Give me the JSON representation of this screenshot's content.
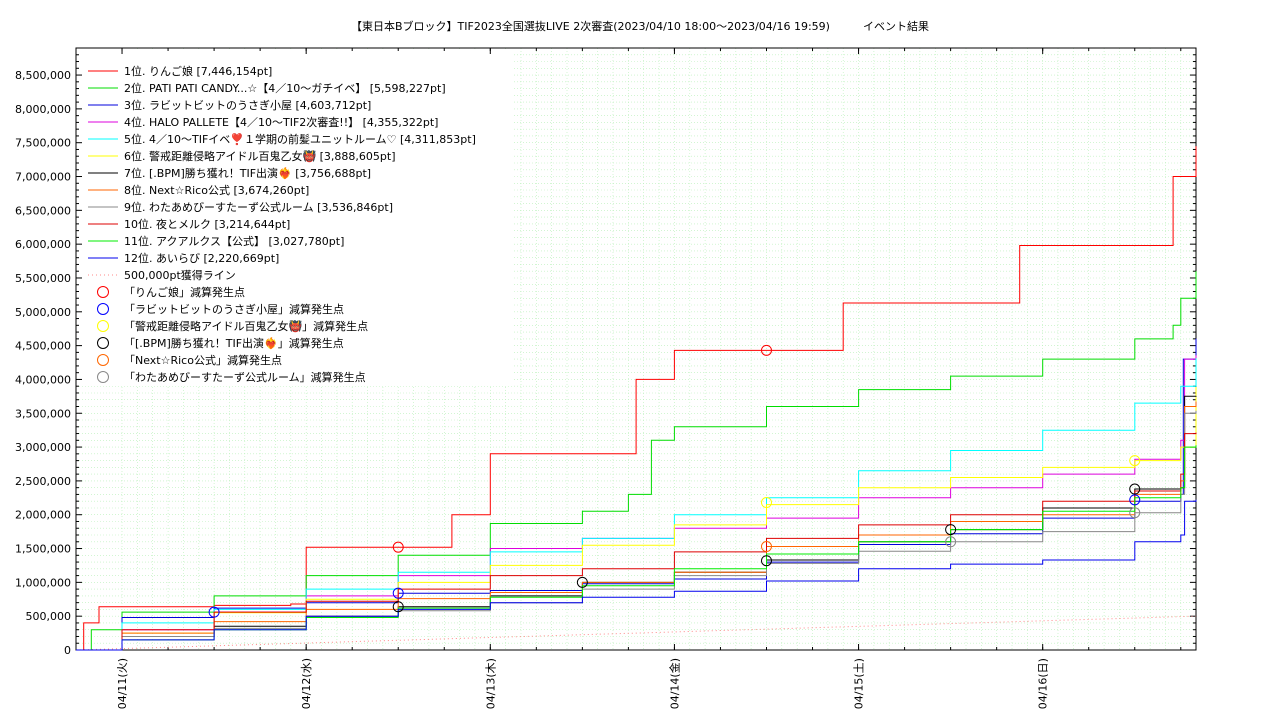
{
  "chart_data": {
    "type": "line",
    "title": "【東日本Bブロック】TIF2023全国選抜LIVE 2次審査(2023/04/10 18:00～2023/04/16 19:59)　　　イベント結果",
    "xlabel": "",
    "ylabel": "",
    "x_range": [
      "2023-04-10 18:00",
      "2023-04-16 19:59"
    ],
    "x_tick_labels": [
      "04/11(火)",
      "04/12(水)",
      "04/13(木)",
      "04/14(金)",
      "04/15(土)",
      "04/16(日)"
    ],
    "x_tick_times": [
      "2023-04-11 00:00",
      "2023-04-12 00:00",
      "2023-04-13 00:00",
      "2023-04-14 00:00",
      "2023-04-15 00:00",
      "2023-04-16 00:00"
    ],
    "ylim": [
      0,
      8900000
    ],
    "y_ticks": [
      0,
      500000,
      1000000,
      1500000,
      2000000,
      2500000,
      3000000,
      3500000,
      4000000,
      4500000,
      5000000,
      5500000,
      6000000,
      6500000,
      7000000,
      7500000,
      8000000,
      8500000
    ],
    "y_tick_labels": [
      "0",
      "500,000",
      "1,000,000",
      "1,500,000",
      "2,000,000",
      "2,500,000",
      "3,000,000",
      "3,500,000",
      "4,000,000",
      "4,500,000",
      "5,000,000",
      "5,500,000",
      "6,000,000",
      "6,500,000",
      "7,000,000",
      "7,500,000",
      "8,000,000",
      "8,500,000"
    ],
    "grid": true,
    "legend_position": "top-left",
    "series": [
      {
        "name": "1位. りんご娘 [7,446,154pt]",
        "color": "#ff0000",
        "x": [
          "2023-04-10 18:00",
          "2023-04-10 19:00",
          "2023-04-10 21:00",
          "2023-04-11 05:00",
          "2023-04-11 10:00",
          "2023-04-11 12:00",
          "2023-04-11 22:00",
          "2023-04-12 00:00",
          "2023-04-12 12:00",
          "2023-04-12 17:00",
          "2023-04-12 19:00",
          "2023-04-13 00:00",
          "2023-04-13 12:00",
          "2023-04-13 17:00",
          "2023-04-13 19:00",
          "2023-04-14 00:00",
          "2023-04-14 12:00",
          "2023-04-14 20:00",
          "2023-04-14 22:00",
          "2023-04-15 00:00",
          "2023-04-15 12:00",
          "2023-04-15 19:00",
          "2023-04-15 21:00",
          "2023-04-16 00:00",
          "2023-04-16 12:00",
          "2023-04-16 16:00",
          "2023-04-16 17:00",
          "2023-04-16 19:59"
        ],
        "y": [
          0,
          400000,
          640000,
          640000,
          640000,
          660000,
          680000,
          1520000,
          1520000,
          1520000,
          2000000,
          2900000,
          2900000,
          2900000,
          4000000,
          4430000,
          4430000,
          4430000,
          5130000,
          5130000,
          5130000,
          5130000,
          5980000,
          5980000,
          5980000,
          5980000,
          7000000,
          7446154
        ]
      },
      {
        "name": "2位. PATI PATI CANDY...☆【4／10〜ガチイベ】 [5,598,227pt]",
        "color": "#00dd00",
        "x": [
          "2023-04-10 18:00",
          "2023-04-10 20:00",
          "2023-04-11 00:00",
          "2023-04-11 12:00",
          "2023-04-12 00:00",
          "2023-04-12 12:00",
          "2023-04-13 00:00",
          "2023-04-13 12:00",
          "2023-04-13 18:00",
          "2023-04-13 21:00",
          "2023-04-14 00:00",
          "2023-04-14 12:00",
          "2023-04-15 00:00",
          "2023-04-15 12:00",
          "2023-04-16 00:00",
          "2023-04-16 12:00",
          "2023-04-16 17:00",
          "2023-04-16 18:00",
          "2023-04-16 19:59"
        ],
        "y": [
          0,
          300000,
          560000,
          800000,
          1100000,
          1400000,
          1870000,
          2050000,
          2300000,
          3100000,
          3300000,
          3600000,
          3850000,
          4050000,
          4300000,
          4600000,
          4800000,
          5200000,
          5598227
        ]
      },
      {
        "name": "3位. ラビットビットのうさぎ小屋 [4,603,712pt]",
        "color": "#0000dd",
        "x": [
          "2023-04-10 18:00",
          "2023-04-11 00:00",
          "2023-04-11 12:00",
          "2023-04-12 00:00",
          "2023-04-12 12:00",
          "2023-04-13 00:00",
          "2023-04-13 12:00",
          "2023-04-14 00:00",
          "2023-04-14 12:00",
          "2023-04-15 00:00",
          "2023-04-15 12:00",
          "2023-04-16 00:00",
          "2023-04-16 12:00",
          "2023-04-16 18:00",
          "2023-04-16 18:20",
          "2023-04-16 19:59"
        ],
        "y": [
          0,
          480000,
          620000,
          700000,
          840000,
          880000,
          980000,
          1050000,
          1300000,
          1560000,
          1720000,
          1950000,
          2200000,
          2300000,
          4300000,
          4603712
        ]
      },
      {
        "name": "4位. HALO PALLETE【4／10〜TIF2次審査!!】 [4,355,322pt]",
        "color": "#dd00dd",
        "x": [
          "2023-04-10 18:00",
          "2023-04-11 00:00",
          "2023-04-11 12:00",
          "2023-04-12 00:00",
          "2023-04-12 12:00",
          "2023-04-13 00:00",
          "2023-04-13 12:00",
          "2023-04-14 00:00",
          "2023-04-14 12:00",
          "2023-04-15 00:00",
          "2023-04-15 12:00",
          "2023-04-16 00:00",
          "2023-04-16 12:00",
          "2023-04-16 18:00",
          "2023-04-16 18:30",
          "2023-04-16 19:59"
        ],
        "y": [
          0,
          300000,
          560000,
          800000,
          1100000,
          1500000,
          1650000,
          1800000,
          1950000,
          2250000,
          2400000,
          2600000,
          2820000,
          3100000,
          4300000,
          4355322
        ]
      },
      {
        "name": "5位. 4／10〜TIFイベ❣️１学期の前髪ユニットルーム♡ [4,311,853pt]",
        "color": "#00ffff",
        "x": [
          "2023-04-10 18:00",
          "2023-04-11 00:00",
          "2023-04-11 12:00",
          "2023-04-12 00:00",
          "2023-04-12 12:00",
          "2023-04-13 00:00",
          "2023-04-13 12:00",
          "2023-04-14 00:00",
          "2023-04-14 12:00",
          "2023-04-15 00:00",
          "2023-04-15 12:00",
          "2023-04-16 00:00",
          "2023-04-16 12:00",
          "2023-04-16 18:00",
          "2023-04-16 19:59"
        ],
        "y": [
          0,
          400000,
          600000,
          900000,
          1150000,
          1450000,
          1650000,
          2000000,
          2250000,
          2650000,
          2950000,
          3250000,
          3650000,
          3900000,
          4311853
        ]
      },
      {
        "name": "6位. 警戒距離侵略アイドル百鬼乙女👹 [3,888,605pt]",
        "color": "#ffff00",
        "x": [
          "2023-04-10 18:00",
          "2023-04-11 00:00",
          "2023-04-11 12:00",
          "2023-04-12 00:00",
          "2023-04-12 12:00",
          "2023-04-13 00:00",
          "2023-04-13 12:00",
          "2023-04-14 00:00",
          "2023-04-14 12:00",
          "2023-04-15 00:00",
          "2023-04-15 12:00",
          "2023-04-16 00:00",
          "2023-04-16 12:00",
          "2023-04-16 18:00",
          "2023-04-16 19:59"
        ],
        "y": [
          0,
          250000,
          550000,
          750000,
          1000000,
          1250000,
          1550000,
          1850000,
          2150000,
          2400000,
          2550000,
          2700000,
          2800000,
          3000000,
          3888605
        ]
      },
      {
        "name": "7位. [.BPM]勝ち獲れ！TIF出演❤️‍🔥 [3,756,688pt]",
        "color": "#000000",
        "x": [
          "2023-04-10 18:00",
          "2023-04-11 00:00",
          "2023-04-11 12:00",
          "2023-04-12 00:00",
          "2023-04-12 12:00",
          "2023-04-13 00:00",
          "2023-04-13 12:00",
          "2023-04-14 00:00",
          "2023-04-14 12:00",
          "2023-04-15 00:00",
          "2023-04-15 12:00",
          "2023-04-16 00:00",
          "2023-04-16 12:00",
          "2023-04-16 18:00",
          "2023-04-16 18:30",
          "2023-04-16 19:59"
        ],
        "y": [
          0,
          200000,
          350000,
          500000,
          640000,
          800000,
          1000000,
          1150000,
          1330000,
          1600000,
          1780000,
          2100000,
          2380000,
          2400000,
          3750000,
          3756688
        ]
      },
      {
        "name": "8位. Next☆Rico公式 [3,674,260pt]",
        "color": "#ff6600",
        "x": [
          "2023-04-10 18:00",
          "2023-04-11 00:00",
          "2023-04-11 12:00",
          "2023-04-12 00:00",
          "2023-04-12 12:00",
          "2023-04-13 00:00",
          "2023-04-13 12:00",
          "2023-04-14 00:00",
          "2023-04-14 12:00",
          "2023-04-15 00:00",
          "2023-04-15 12:00",
          "2023-04-16 00:00",
          "2023-04-16 12:00",
          "2023-04-16 18:00",
          "2023-04-16 18:30",
          "2023-04-16 19:59"
        ],
        "y": [
          0,
          250000,
          420000,
          600000,
          760000,
          850000,
          1000000,
          1150000,
          1530000,
          1700000,
          1900000,
          2000000,
          2300000,
          2500000,
          3600000,
          3674260
        ]
      },
      {
        "name": "9位. わたあめびーすたーず公式ルーム [3,536,846pt]",
        "color": "#888888",
        "x": [
          "2023-04-10 18:00",
          "2023-04-11 00:00",
          "2023-04-11 12:00",
          "2023-04-12 00:00",
          "2023-04-12 12:00",
          "2023-04-13 00:00",
          "2023-04-13 12:00",
          "2023-04-14 00:00",
          "2023-04-14 12:00",
          "2023-04-15 00:00",
          "2023-04-15 12:00",
          "2023-04-16 00:00",
          "2023-04-16 12:00",
          "2023-04-16 18:00",
          "2023-04-16 18:30",
          "2023-04-16 19:59"
        ],
        "y": [
          0,
          200000,
          320000,
          500000,
          580000,
          700000,
          900000,
          1100000,
          1280000,
          1460000,
          1600000,
          1750000,
          2030000,
          2300000,
          3500000,
          3536846
        ]
      },
      {
        "name": "10位. 夜とメルク [3,214,644pt]",
        "color": "#dd0000",
        "x": [
          "2023-04-10 18:00",
          "2023-04-11 00:00",
          "2023-04-11 12:00",
          "2023-04-12 00:00",
          "2023-04-12 12:00",
          "2023-04-13 00:00",
          "2023-04-13 12:00",
          "2023-04-14 00:00",
          "2023-04-14 12:00",
          "2023-04-15 00:00",
          "2023-04-15 12:00",
          "2023-04-16 00:00",
          "2023-04-16 12:00",
          "2023-04-16 18:00",
          "2023-04-16 18:30",
          "2023-04-16 19:59"
        ],
        "y": [
          0,
          300000,
          560000,
          720000,
          900000,
          1100000,
          1200000,
          1450000,
          1650000,
          1850000,
          2000000,
          2200000,
          2350000,
          2600000,
          3200000,
          3214644
        ]
      },
      {
        "name": "11位. アクアルクス【公式】 [3,027,780pt]",
        "color": "#00ee00",
        "x": [
          "2023-04-10 18:00",
          "2023-04-11 00:00",
          "2023-04-11 12:00",
          "2023-04-12 00:00",
          "2023-04-12 12:00",
          "2023-04-13 00:00",
          "2023-04-13 12:00",
          "2023-04-14 00:00",
          "2023-04-14 12:00",
          "2023-04-15 00:00",
          "2023-04-15 12:00",
          "2023-04-16 00:00",
          "2023-04-16 12:00",
          "2023-04-16 18:00",
          "2023-04-16 18:30",
          "2023-04-16 19:59"
        ],
        "y": [
          0,
          150000,
          300000,
          480000,
          620000,
          780000,
          950000,
          1200000,
          1420000,
          1600000,
          1780000,
          2050000,
          2250000,
          2400000,
          3000000,
          3027780
        ]
      },
      {
        "name": "12位. あいらび [2,220,669pt]",
        "color": "#0000ee",
        "x": [
          "2023-04-10 18:00",
          "2023-04-11 00:00",
          "2023-04-11 12:00",
          "2023-04-12 00:00",
          "2023-04-12 12:00",
          "2023-04-13 00:00",
          "2023-04-13 12:00",
          "2023-04-14 00:00",
          "2023-04-14 12:00",
          "2023-04-15 00:00",
          "2023-04-15 12:00",
          "2023-04-16 00:00",
          "2023-04-16 12:00",
          "2023-04-16 18:00",
          "2023-04-16 18:30",
          "2023-04-16 19:59"
        ],
        "y": [
          0,
          150000,
          300000,
          500000,
          600000,
          700000,
          780000,
          870000,
          1020000,
          1200000,
          1270000,
          1330000,
          1600000,
          1700000,
          2200000,
          2220669
        ]
      }
    ],
    "reference_line": {
      "name": "500,000pt獲得ライン",
      "color": "#ff8888",
      "x": [
        "2023-04-10 18:00",
        "2023-04-16 19:59"
      ],
      "y": [
        0,
        500000
      ]
    },
    "event_markers": [
      {
        "name": "「りんご娘」減算発生点",
        "color": "#ff0000",
        "points": [
          {
            "x": "2023-04-12 12:00",
            "y": 1520000
          },
          {
            "x": "2023-04-14 12:00",
            "y": 4430000
          }
        ]
      },
      {
        "name": "「ラビットビットのうさぎ小屋」減算発生点",
        "color": "#0000ff",
        "points": [
          {
            "x": "2023-04-11 12:00",
            "y": 560000
          },
          {
            "x": "2023-04-12 12:00",
            "y": 840000
          },
          {
            "x": "2023-04-16 12:00",
            "y": 2220000
          }
        ]
      },
      {
        "name": "「警戒距離侵略アイドル百鬼乙女👹」減算発生点",
        "color": "#ffff00",
        "points": [
          {
            "x": "2023-04-14 12:00",
            "y": 2180000
          },
          {
            "x": "2023-04-16 12:00",
            "y": 2800000
          }
        ]
      },
      {
        "name": "「[.BPM]勝ち獲れ！TIF出演❤️‍🔥」減算発生点",
        "color": "#000000",
        "points": [
          {
            "x": "2023-04-12 12:00",
            "y": 640000
          },
          {
            "x": "2023-04-13 12:00",
            "y": 1000000
          },
          {
            "x": "2023-04-14 12:00",
            "y": 1320000
          },
          {
            "x": "2023-04-15 12:00",
            "y": 1780000
          },
          {
            "x": "2023-04-16 12:00",
            "y": 2380000
          }
        ]
      },
      {
        "name": "「Next☆Rico公式」減算発生点",
        "color": "#ff6600",
        "points": [
          {
            "x": "2023-04-14 12:00",
            "y": 1530000
          }
        ]
      },
      {
        "name": "「わたあめびーすたーず公式ルーム」減算発生点",
        "color": "#888888",
        "points": [
          {
            "x": "2023-04-15 12:00",
            "y": 1600000
          },
          {
            "x": "2023-04-16 12:00",
            "y": 2030000
          }
        ]
      }
    ]
  }
}
